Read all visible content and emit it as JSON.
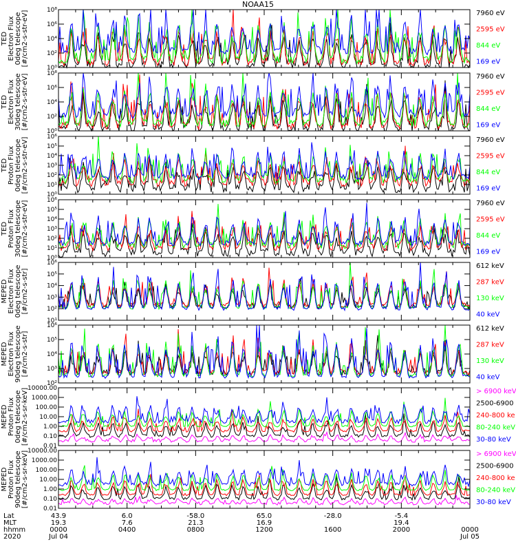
{
  "title": "NOAA15",
  "chart_data": [
    {
      "type": "line",
      "ylabel": [
        "TED",
        "Electron Flux",
        "0deg telescope",
        "[#/cm2-s-str-eV]"
      ],
      "yticks": [
        "10⁰",
        "10²",
        "10⁴",
        "10⁶",
        "10⁸"
      ],
      "ylim_log10": [
        0,
        8
      ],
      "series": [
        {
          "name": "7960 eV",
          "color": "#000000",
          "base": 0.3,
          "amp": 4.5,
          "noise": 1.2,
          "spike": 0.1
        },
        {
          "name": "2595 eV",
          "color": "#ff0000",
          "base": 0.7,
          "amp": 5.0,
          "noise": 1.0,
          "spike": 0.1
        },
        {
          "name": "844 eV",
          "color": "#00ff00",
          "base": 1.0,
          "amp": 5.5,
          "noise": 1.0,
          "spike": 0.1
        },
        {
          "name": "169 eV",
          "color": "#0000ff",
          "base": 2.2,
          "amp": 5.0,
          "noise": 1.0,
          "spike": 0.2
        }
      ]
    },
    {
      "type": "line",
      "ylabel": [
        "TED",
        "Electron Flux",
        "30deg telescope",
        "[#/cm2-s-str-eV]"
      ],
      "yticks": [
        "10⁰",
        "10²",
        "10⁴",
        "10⁶",
        "10⁸"
      ],
      "ylim_log10": [
        0,
        8
      ],
      "series": [
        {
          "name": "7960 eV",
          "color": "#000000",
          "base": 0.3,
          "amp": 4.5,
          "noise": 1.2,
          "spike": 0.1
        },
        {
          "name": "2595 eV",
          "color": "#ff0000",
          "base": 0.7,
          "amp": 5.0,
          "noise": 1.0,
          "spike": 0.1
        },
        {
          "name": "844 eV",
          "color": "#00ff00",
          "base": 1.0,
          "amp": 5.5,
          "noise": 1.0,
          "spike": 0.1
        },
        {
          "name": "169 eV",
          "color": "#0000ff",
          "base": 2.2,
          "amp": 4.8,
          "noise": 1.0,
          "spike": 0.2
        }
      ]
    },
    {
      "type": "line",
      "ylabel": [
        "TED",
        "Proton Flux",
        "0deg telescope",
        "[#/cm2-s-str-eV]"
      ],
      "yticks": [
        "10⁰",
        "10¹",
        "10²",
        "10³",
        "10⁴",
        "10⁵",
        "10⁶"
      ],
      "ylim_log10": [
        0,
        6
      ],
      "series": [
        {
          "name": "7960 eV",
          "color": "#000000",
          "base": 0.6,
          "amp": 2.5,
          "noise": 0.9,
          "spike": 0.1
        },
        {
          "name": "2595 eV",
          "color": "#ff0000",
          "base": 1.2,
          "amp": 2.5,
          "noise": 0.8,
          "spike": 0.1
        },
        {
          "name": "844 eV",
          "color": "#00ff00",
          "base": 1.5,
          "amp": 3.0,
          "noise": 0.8,
          "spike": 0.1
        },
        {
          "name": "169 eV",
          "color": "#0000ff",
          "base": 1.8,
          "amp": 2.8,
          "noise": 0.6,
          "spike": 0.15
        }
      ]
    },
    {
      "type": "line",
      "ylabel": [
        "TED",
        "Proton Flux",
        "30deg telescope",
        "[#/cm2-s-str-eV]"
      ],
      "yticks": [
        "10⁰",
        "10¹",
        "10²",
        "10³",
        "10⁴",
        "10⁵",
        "10⁶"
      ],
      "ylim_log10": [
        0,
        6
      ],
      "series": [
        {
          "name": "7960 eV",
          "color": "#000000",
          "base": 0.5,
          "amp": 2.5,
          "noise": 0.9,
          "spike": 0.1
        },
        {
          "name": "2595 eV",
          "color": "#ff0000",
          "base": 1.1,
          "amp": 2.5,
          "noise": 0.8,
          "spike": 0.1
        },
        {
          "name": "844 eV",
          "color": "#00ff00",
          "base": 1.3,
          "amp": 2.8,
          "noise": 0.8,
          "spike": 0.1
        },
        {
          "name": "169 eV",
          "color": "#0000ff",
          "base": 1.5,
          "amp": 2.8,
          "noise": 0.6,
          "spike": 0.15
        }
      ]
    },
    {
      "type": "line",
      "ylabel": [
        "MEPED",
        "Electron Flux",
        "0deg telescope",
        "[#/cm2-s-str]"
      ],
      "yticks": [
        "10¹",
        "10²",
        "10³",
        "10⁴",
        "10⁵",
        "10⁶"
      ],
      "ylim_log10": [
        1,
        6
      ],
      "series": [
        {
          "name": "612 keV",
          "color": "#000000",
          "base": 2.2,
          "amp": 2.0,
          "noise": 0.5,
          "spike": 0.1
        },
        {
          "name": "287 keV",
          "color": "#ff0000",
          "base": 2.3,
          "amp": 2.3,
          "noise": 0.4,
          "spike": 0.1
        },
        {
          "name": "130 keV",
          "color": "#00ff00",
          "base": 2.1,
          "amp": 2.6,
          "noise": 0.3,
          "spike": 0.1
        },
        {
          "name": "40 keV",
          "color": "#0000ff",
          "base": 2.0,
          "amp": 2.8,
          "noise": 0.3,
          "spike": 0.15
        }
      ]
    },
    {
      "type": "line",
      "ylabel": [
        "MEPED",
        "Electron Flux",
        "90deg telescope",
        "[#/cm2-s-str]"
      ],
      "yticks": [
        "10²",
        "10³",
        "10⁴",
        "10⁵",
        "10⁶"
      ],
      "ylim_log10": [
        1.5,
        6
      ],
      "series": [
        {
          "name": "612 keV",
          "color": "#000000",
          "base": 2.3,
          "amp": 1.8,
          "noise": 0.5,
          "spike": 0.1
        },
        {
          "name": "287 keV",
          "color": "#ff0000",
          "base": 2.3,
          "amp": 2.2,
          "noise": 0.4,
          "spike": 0.1
        },
        {
          "name": "130 keV",
          "color": "#00ff00",
          "base": 2.1,
          "amp": 2.6,
          "noise": 0.3,
          "spike": 0.1
        },
        {
          "name": "40 keV",
          "color": "#0000ff",
          "base": 2.0,
          "amp": 3.0,
          "noise": 0.3,
          "spike": 0.2
        }
      ]
    },
    {
      "type": "line",
      "ylabel": [
        "MEPED",
        "Proton Flux",
        "0deg telescope",
        "[#/cm2-s-sr-keV]"
      ],
      "yticks": [
        "0.01",
        "0.10",
        "1.00",
        "10.00",
        "100.00",
        "1000.00",
        "10000.00"
      ],
      "ylim_log10": [
        -2,
        4
      ],
      "series": [
        {
          "name": "> 6900 keV",
          "color": "#ff00ff",
          "base": -1.5,
          "amp": 0.6,
          "noise": 0.3,
          "spike": 0.05
        },
        {
          "name": "2500-6900",
          "color": "#000000",
          "base": -1.0,
          "amp": 1.5,
          "noise": 0.3,
          "spike": 0.05
        },
        {
          "name": "240-800 ke",
          "color": "#ff0000",
          "base": -0.5,
          "amp": 1.6,
          "noise": 0.2,
          "spike": 0.05
        },
        {
          "name": "80-240 keV",
          "color": "#00ff00",
          "base": 0.0,
          "amp": 1.8,
          "noise": 0.15,
          "spike": 0.05
        },
        {
          "name": "30-80 keV",
          "color": "#0000ff",
          "base": 0.5,
          "amp": 1.8,
          "noise": 0.4,
          "spike": 0.15
        }
      ]
    },
    {
      "type": "line",
      "ylabel": [
        "MEPED",
        "Proton Flux",
        "90deg telescope",
        "[#/cm2-s-sr-keV]"
      ],
      "yticks": [
        "0.01",
        "0.10",
        "1.00",
        "10.00",
        "100.00",
        "1000.00",
        "10000.00"
      ],
      "ylim_log10": [
        -2,
        4
      ],
      "series": [
        {
          "name": "> 6900 keV",
          "color": "#ff00ff",
          "base": -1.5,
          "amp": 0.6,
          "noise": 0.3,
          "spike": 0.05
        },
        {
          "name": "2500-6900",
          "color": "#000000",
          "base": -1.0,
          "amp": 1.5,
          "noise": 0.3,
          "spike": 0.05
        },
        {
          "name": "240-800 ke",
          "color": "#ff0000",
          "base": -0.6,
          "amp": 1.6,
          "noise": 0.2,
          "spike": 0.05
        },
        {
          "name": "80-240 keV",
          "color": "#00ff00",
          "base": -0.1,
          "amp": 1.8,
          "noise": 0.15,
          "spike": 0.05
        },
        {
          "name": "30-80 keV",
          "color": "#0000ff",
          "base": 0.5,
          "amp": 1.8,
          "noise": 0.4,
          "spike": 0.15
        }
      ]
    }
  ],
  "footer": {
    "row_labels": [
      "Lat",
      "MLT",
      "hhmm",
      "2020"
    ],
    "columns": [
      {
        "lat": "43.9",
        "mlt": "19.3",
        "hhmm": "0000",
        "date": "Jul 04"
      },
      {
        "lat": "6.0",
        "mlt": "7.6",
        "hhmm": "0400",
        "date": ""
      },
      {
        "lat": "-58.0",
        "mlt": "21.3",
        "hhmm": "0800",
        "date": ""
      },
      {
        "lat": "65.0",
        "mlt": "16.9",
        "hhmm": "1200",
        "date": ""
      },
      {
        "lat": "-28.0",
        "mlt": "",
        "hhmm": "1600",
        "date": ""
      },
      {
        "lat": "-5.4",
        "mlt": "19.4",
        "hhmm": "2000",
        "date": ""
      },
      {
        "lat": "",
        "mlt": "",
        "hhmm": "0000",
        "date": "Jul 05"
      }
    ]
  }
}
